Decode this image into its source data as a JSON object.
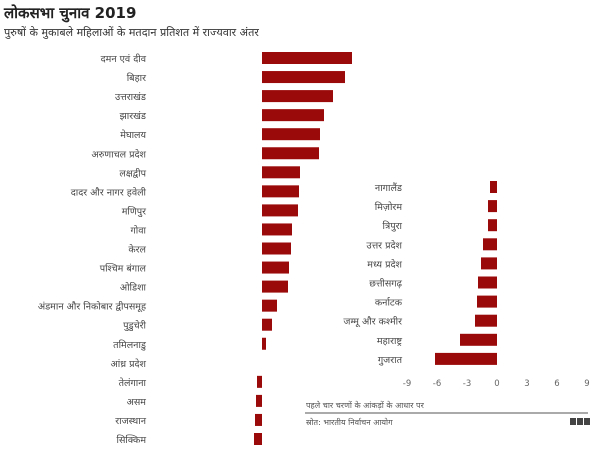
{
  "title": "लोकसभा चुनाव 2019",
  "subtitle": "पुरुषों के मुकाबले महिलाओं के मतदान प्रतिशत में राज्यवार अंतर",
  "footnote": "पहले चार चरणों के आंकड़ों के आधार पर",
  "source": "स्रोत: भारतीय निर्वाचन आयोग",
  "logo": "BBC",
  "colors": {
    "bar": "#9b0a0a"
  },
  "chart_data": [
    {
      "type": "bar",
      "orientation": "horizontal",
      "categories": [
        "दमन एवं दीव",
        "बिहार",
        "उत्तराखंड",
        "झारखंड",
        "मेघालय",
        "अरुणाचल प्रदेश",
        "लक्षद्वीप",
        "दादर और नागर हवेली",
        "मणिपुर",
        "गोवा",
        "केरल",
        "पश्चिम बंगाल",
        "ओडिशा",
        "अंडमान और निकोबार द्वीपसमूह",
        "पुडुचेरी",
        "तमिलनाडु",
        "आंध्र प्रदेश",
        "तेलंगाना",
        "असम",
        "राजस्थान",
        "सिक्किम"
      ],
      "values": [
        9.0,
        8.3,
        7.1,
        6.2,
        5.8,
        5.7,
        3.8,
        3.7,
        3.6,
        3.0,
        2.9,
        2.7,
        2.6,
        1.5,
        1.0,
        0.4,
        0,
        -0.5,
        -0.6,
        -0.7,
        -0.8
      ],
      "xlim": [
        -9,
        9
      ]
    },
    {
      "type": "bar",
      "orientation": "horizontal",
      "categories": [
        "नागालैंड",
        "मिज़ोरम",
        "त्रिपुरा",
        "उत्तर प्रदेश",
        "मध्य प्रदेश",
        "छत्तीसगढ़",
        "कर्नाटक",
        "जम्मू और कश्मीर",
        "महाराष्ट्र",
        "गुजरात"
      ],
      "values": [
        -0.7,
        -0.9,
        -0.9,
        -1.4,
        -1.6,
        -1.9,
        -2.0,
        -2.2,
        -3.7,
        -6.2
      ],
      "xlim": [
        -9,
        9
      ],
      "xticks": [
        "-9",
        "-6",
        "-3",
        "0",
        "3",
        "6",
        "9"
      ]
    }
  ]
}
